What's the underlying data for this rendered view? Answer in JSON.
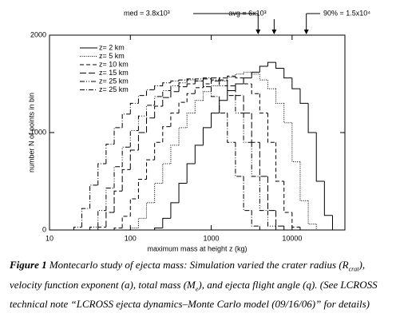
{
  "chart_data": {
    "type": "histogram",
    "xlabel": "maximum mass at height z (kg)",
    "ylabel": "number N of points in bin",
    "xscale": "log",
    "xlim": [
      10,
      45000
    ],
    "ylim": [
      0,
      2000
    ],
    "xticks": [
      10,
      100,
      1000,
      10000
    ],
    "yticks": [
      0,
      1000,
      2000
    ],
    "legend": "upper left",
    "bins": [
      15.8,
      20,
      25.1,
      31.6,
      39.8,
      50.1,
      63.1,
      79.4,
      100,
      125.9,
      158.5,
      199.5,
      251.2,
      316.2,
      398.1,
      501.2,
      631,
      794.3,
      1000,
      1258.9,
      1584.9,
      1995.3,
      2511.9,
      3162.3,
      3981.1,
      5011.9,
      6309.6,
      7943.3,
      10000,
      12589,
      15849,
      19953,
      25119,
      31623,
      39811
    ],
    "series": [
      {
        "name": "z= 2 km",
        "color": "#000000",
        "dash": "none",
        "values": [
          0,
          0,
          0,
          0,
          0,
          0,
          0,
          0,
          0,
          0,
          0,
          20,
          120,
          280,
          480,
          680,
          870,
          1050,
          1200,
          1330,
          1430,
          1500,
          1560,
          1620,
          1680,
          1720,
          1660,
          1560,
          1450,
          1300,
          1000,
          500,
          150,
          0
        ]
      },
      {
        "name": "z= 5 km",
        "color": "#000000",
        "dash": "1,1.5",
        "values": [
          0,
          0,
          0,
          0,
          0,
          0,
          0,
          0,
          20,
          120,
          280,
          480,
          680,
          870,
          1050,
          1200,
          1330,
          1420,
          1480,
          1530,
          1570,
          1600,
          1620,
          1600,
          1540,
          1450,
          1300,
          1100,
          700,
          300,
          60,
          0,
          0,
          0
        ]
      },
      {
        "name": "z= 10 km",
        "color": "#000000",
        "dash": "5,3",
        "values": [
          0,
          0,
          0,
          0,
          0,
          0,
          20,
          140,
          320,
          520,
          720,
          900,
          1060,
          1200,
          1310,
          1400,
          1460,
          1500,
          1530,
          1560,
          1580,
          1560,
          1500,
          1400,
          1200,
          900,
          500,
          180,
          30,
          0,
          0,
          0,
          0,
          0
        ]
      },
      {
        "name": "z= 15 km",
        "color": "#000000",
        "dash": "8,3",
        "values": [
          0,
          0,
          0,
          0,
          30,
          180,
          400,
          620,
          820,
          1000,
          1150,
          1270,
          1360,
          1420,
          1470,
          1500,
          1530,
          1550,
          1560,
          1540,
          1480,
          1380,
          1200,
          900,
          550,
          200,
          40,
          0,
          0,
          0,
          0,
          0,
          0,
          0
        ]
      },
      {
        "name": "z= 25 km",
        "color": "#000000",
        "dash": "6,2,1,2,1,2",
        "values": [
          0,
          0,
          0,
          30,
          200,
          430,
          650,
          850,
          1020,
          1170,
          1280,
          1370,
          1430,
          1480,
          1510,
          1540,
          1550,
          1560,
          1540,
          1480,
          1380,
          1200,
          900,
          550,
          200,
          40,
          0,
          0,
          0,
          0,
          0,
          0,
          0,
          0
        ]
      },
      {
        "name": "z= 25 km",
        "color": "#000000",
        "dash": "6,2,1,2",
        "values": [
          0,
          30,
          220,
          460,
          680,
          880,
          1050,
          1190,
          1300,
          1380,
          1440,
          1480,
          1510,
          1530,
          1540,
          1550,
          1530,
          1470,
          1370,
          1200,
          900,
          550,
          200,
          40,
          0,
          0,
          0,
          0,
          0,
          0,
          0,
          0,
          0,
          0
        ]
      }
    ],
    "annotations": [
      {
        "text": "med = 3.8x10³",
        "x": 3800
      },
      {
        "text": "avg = 6x10³",
        "x": 6000
      },
      {
        "text": "90% = 1.5x10⁴",
        "x": 15000
      }
    ]
  },
  "caption": {
    "label": "Figure 1",
    "parts": [
      "Montecarlo study of ejecta mass: Simulation varied the crater radius (R",
      "crat",
      "), velocity function exponent (a), total mass (M",
      "e",
      "), and ejecta flight angle (q).  (See LCROSS technical note “LCROSS ejecta dynamics–Monte Carlo model (09/16/06)” for details)"
    ]
  }
}
